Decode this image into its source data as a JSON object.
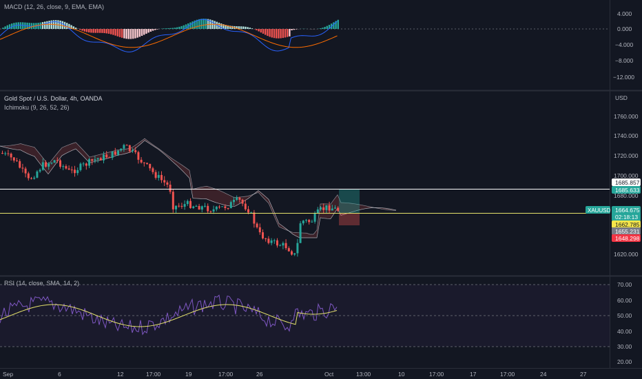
{
  "panes": {
    "macd": {
      "legend": "MACD (12, 26, close, 9, EMA, EMA)",
      "ticks": [
        "4.000",
        "0.000",
        "−4.000",
        "−8.000",
        "−12.000"
      ]
    },
    "price": {
      "legend_title": "Gold Spot / U.S. Dollar, 4h, OANDA",
      "legend_indicator": "Ichimoku (9, 26, 52, 26)",
      "currency": "USD",
      "ticks": [
        "1760.000",
        "1740.000",
        "1720.000",
        "1700.000",
        "1680.000",
        "1620.000"
      ]
    },
    "rsi": {
      "legend": "RSI (14, close, SMA, 14, 2)",
      "ticks": [
        "70.00",
        "60.00",
        "50.00",
        "40.00",
        "30.00",
        "20.00"
      ]
    }
  },
  "price_labels": {
    "level_upper": "1685.857",
    "level_lower": "1685.633",
    "symbol": "XAUUSD",
    "last_price": "1664.675",
    "countdown": "02:18:13",
    "yellow_label": "1662.785",
    "gray_label": "1655.231",
    "red_label": "1648.298"
  },
  "time_axis": [
    "Sep",
    "6",
    "12",
    "17:00",
    "19",
    "17:00",
    "26",
    "Oct",
    "13:00",
    "10",
    "17:00",
    "17",
    "17:00",
    "24",
    "27"
  ],
  "colors": {
    "bull": "#26a69a",
    "bear": "#ef5350",
    "macd_line": "#2962ff",
    "signal_line": "#ff6d00",
    "rsi_line": "#7e57c2",
    "rsi_ma": "#e6e36b",
    "last_price": "#26a69a",
    "level_line": "#ffffff"
  },
  "chart_data": {
    "type": "candlestick",
    "symbol": "XAUUSD",
    "interval": "4h",
    "horizontal_levels": [
      1685.857,
      1685.633
    ],
    "last_price": 1664.675,
    "macd_range": [
      -14,
      6
    ],
    "rsi_range": [
      18,
      72
    ],
    "rsi_bands": [
      70,
      50,
      30
    ]
  }
}
